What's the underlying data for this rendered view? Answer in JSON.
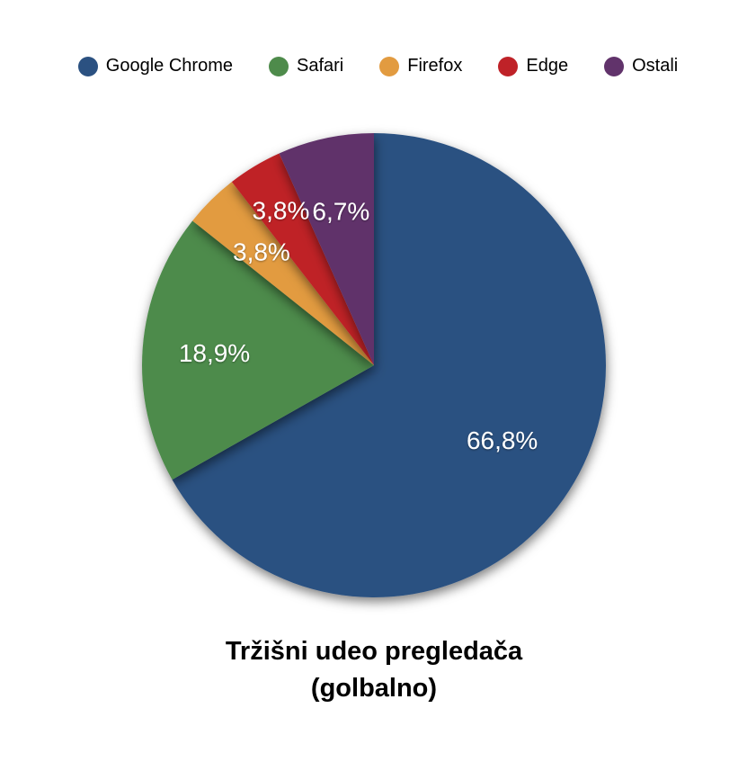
{
  "chart_data": {
    "type": "pie",
    "title": "Tržišni udeo pregledača (golbalno)",
    "title_lines": [
      "Tržišni udeo pregledača",
      "(golbalno)"
    ],
    "legend_position": "top",
    "start_angle_deg": 0,
    "direction": "clockwise",
    "total": 100.0,
    "series": [
      {
        "name": "Google Chrome",
        "value": 66.8,
        "label": "66,8%",
        "color": "#2B5181"
      },
      {
        "name": "Safari",
        "value": 18.9,
        "label": "18,9%",
        "color": "#4E8B4B"
      },
      {
        "name": "Firefox",
        "value": 3.8,
        "label": "3,8%",
        "color": "#E29B40"
      },
      {
        "name": "Edge",
        "value": 3.8,
        "label": "3,8%",
        "color": "#BF2228"
      },
      {
        "name": "Ostali",
        "value": 6.7,
        "label": "6,7%",
        "color": "#61336B"
      }
    ],
    "label_color": "#ffffff",
    "layout": {
      "center_x": 416,
      "center_y": 406,
      "radius": 258,
      "label_radius_fractions": [
        0.64,
        0.69,
        0.69,
        0.78,
        0.68
      ]
    }
  }
}
